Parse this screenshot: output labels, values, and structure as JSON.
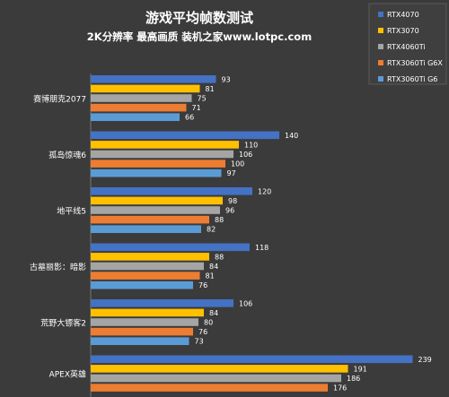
{
  "title": "游戏平均帧数测试",
  "subtitle": "2K分辨率 最高画质 装机之家www.lotpc.com",
  "chart_data": {
    "type": "bar",
    "orientation": "horizontal",
    "title": "游戏平均帧数测试",
    "subtitle": "2K分辨率 最高画质 装机之家www.lotpc.com",
    "categories": [
      "赛博朋克2077",
      "孤岛惊魂6",
      "地平线5",
      "古墓丽影：暗影",
      "荒野大镖客2",
      "APEX英雄"
    ],
    "series": [
      {
        "name": "RTX4070",
        "color": "#4472c4",
        "values": [
          93,
          140,
          120,
          118,
          106,
          239
        ]
      },
      {
        "name": "RTX3070",
        "color": "#ffc000",
        "values": [
          81,
          110,
          98,
          88,
          84,
          191
        ]
      },
      {
        "name": "RTX4060Ti",
        "color": "#a5a5a5",
        "values": [
          75,
          106,
          96,
          84,
          80,
          186
        ]
      },
      {
        "name": "RTX3060Ti G6X",
        "color": "#ed7d31",
        "values": [
          71,
          100,
          88,
          81,
          76,
          176
        ]
      },
      {
        "name": "RTX3060Ti G6",
        "color": "#5b9bd5",
        "values": [
          66,
          97,
          82,
          76,
          73,
          null
        ]
      }
    ],
    "legend_position": "top-right",
    "grid": false,
    "xlim": [
      0,
      260
    ]
  }
}
